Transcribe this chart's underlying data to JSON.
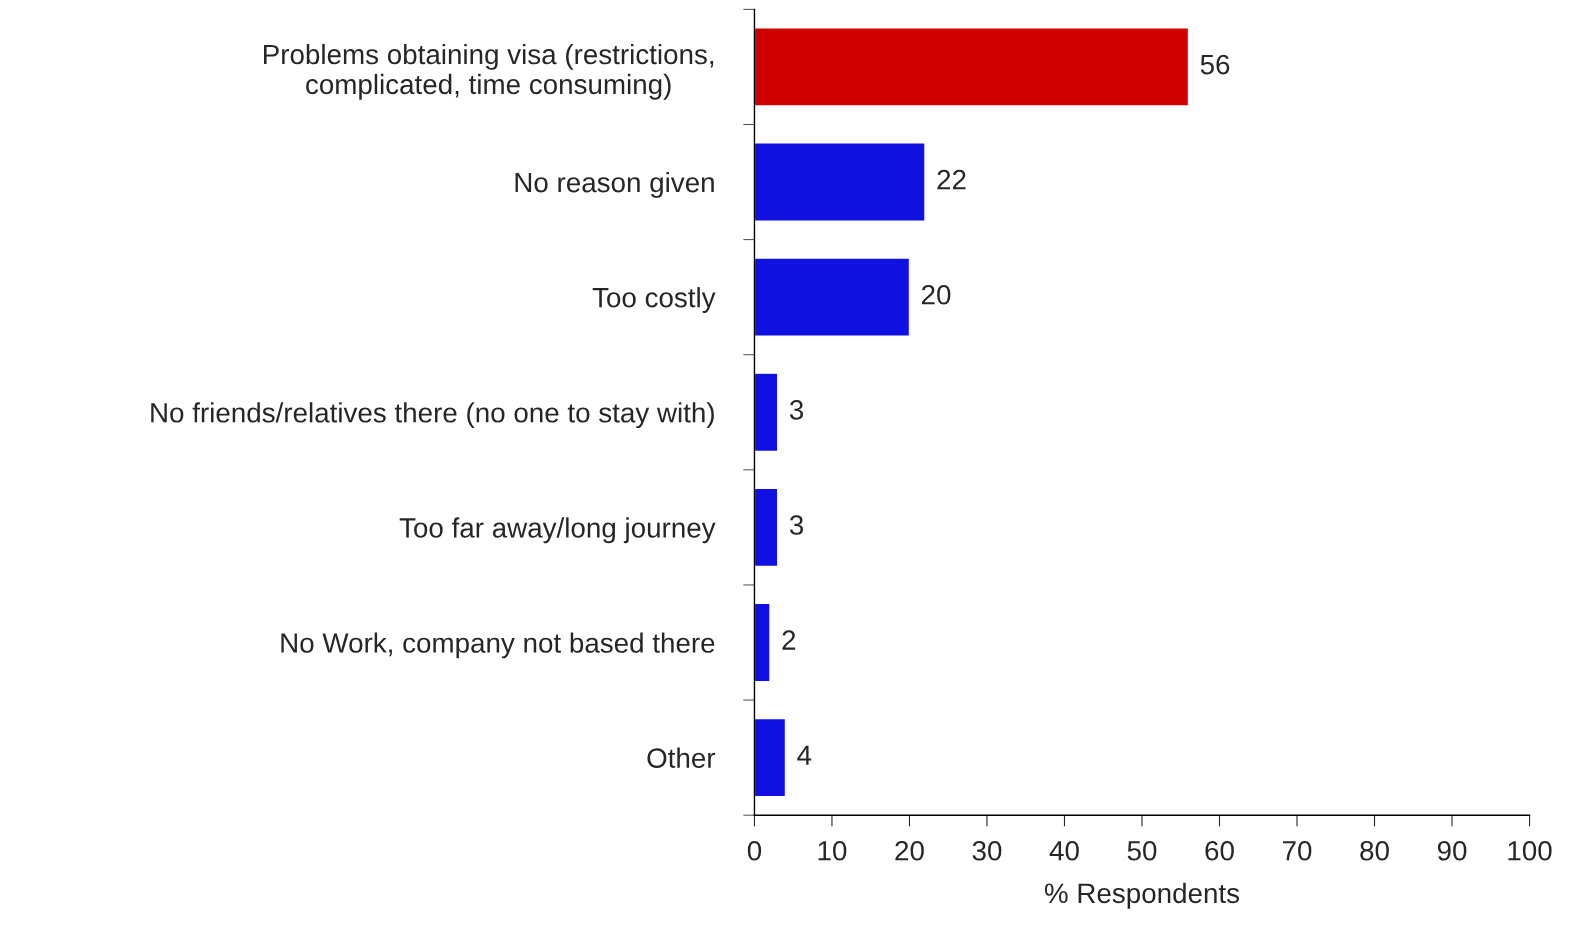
{
  "chart_data": {
    "type": "bar",
    "orientation": "horizontal",
    "categories": [
      "Problems obtaining visa (restrictions,\ncomplicated, time consuming)",
      "No reason given",
      "Too costly",
      "No friends/relatives there (no one to stay with)",
      "Too far away/long journey",
      "No Work, company not based there",
      "Other"
    ],
    "values": [
      56,
      22,
      20,
      3,
      3,
      2,
      4
    ],
    "colors": [
      "#d00000",
      "#1010e0",
      "#1010e0",
      "#1010e0",
      "#1010e0",
      "#1010e0",
      "#1010e0"
    ],
    "xlim": [
      0,
      100
    ],
    "xticks": [
      0,
      10,
      20,
      30,
      40,
      50,
      60,
      70,
      80,
      90,
      100
    ],
    "xlabel": "% Respondents",
    "data_labels": true,
    "grid": false,
    "legend": false
  }
}
